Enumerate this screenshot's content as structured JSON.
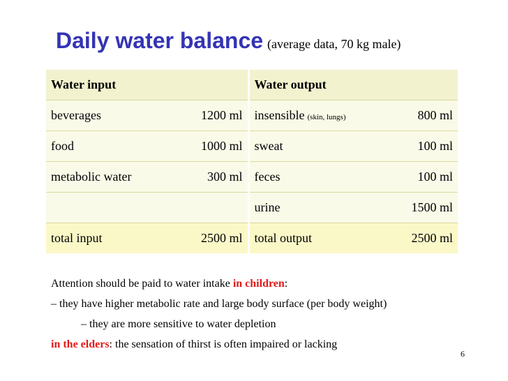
{
  "title": {
    "main": "Daily water balance",
    "sub": "(average data, 70 kg male)"
  },
  "table": {
    "header": {
      "input": "Water input",
      "output": "Water output"
    },
    "rows": [
      {
        "in_label": "beverages",
        "in_value": "1200 ml",
        "out_label": "insensible",
        "out_note": "(skin, lungs)",
        "out_value": "800 ml"
      },
      {
        "in_label": "food",
        "in_value": "1000 ml",
        "out_label": "sweat",
        "out_value": "100 ml"
      },
      {
        "in_label": "metabolic water",
        "in_value": "300 ml",
        "out_label": "feces",
        "out_value": "100 ml"
      },
      {
        "in_label": "",
        "in_value": "",
        "out_label": "urine",
        "out_value": "1500 ml"
      }
    ],
    "total": {
      "in_label": "total input",
      "in_value": "2500 ml",
      "out_label": "total output",
      "out_value": "2500 ml"
    }
  },
  "notes": {
    "line1_text": "Attention should be paid to water intake",
    "line1_highlight": "in children",
    "line1_end": ":",
    "line2": "– they have higher metabolic rate and large body surface (per body weight)",
    "line3": "– they are more sensitive to water depletion",
    "line4_highlight": "in the elders",
    "line4_text": ": the sensation of thirst is often impaired or lacking"
  },
  "page_number": "6",
  "colors": {
    "title": "#3434b4",
    "highlight": "#e41a1a",
    "header_bg": "#f2f2cf",
    "row_bg": "#fafae8",
    "total_bg": "#fbf8c8"
  }
}
